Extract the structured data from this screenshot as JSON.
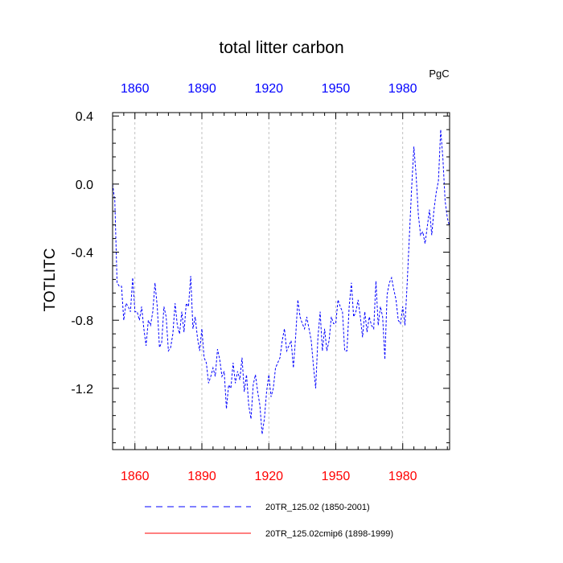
{
  "chart_data": {
    "type": "line",
    "title": "total litter carbon",
    "units": "PgC",
    "ylabel": "TOTLITC",
    "xlabel": "",
    "xlim": [
      1850,
      2001
    ],
    "ylim": [
      -1.56,
      0.42
    ],
    "grid": "vertical dashed at x ticks",
    "x_ticks": [
      1860,
      1890,
      1920,
      1950,
      1980
    ],
    "x_tick_labels": [
      "1860",
      "1890",
      "1920",
      "1950",
      "1980"
    ],
    "y_ticks": [
      0.4,
      0.0,
      -0.4,
      -0.8,
      -1.2
    ],
    "y_tick_labels": [
      "0.4",
      "0.0",
      "-0.4",
      "-0.8",
      "-1.2"
    ],
    "legend": [
      {
        "label": "20TR_125.02 (1850-2001)",
        "color": "#0000ff",
        "style": "dashed"
      },
      {
        "label": "20TR_125.02cmip6 (1898-1999)",
        "color": "#ff0000",
        "style": "solid"
      }
    ],
    "series": [
      {
        "name": "20TR_125.02 (1850-2001)",
        "color": "#0000ff",
        "style": "dashed",
        "x_start": 1850,
        "x_step": 1,
        "values": [
          0.0,
          -0.1,
          -0.58,
          -0.6,
          -0.6,
          -0.8,
          -0.7,
          -0.72,
          -0.75,
          -0.55,
          -0.75,
          -0.75,
          -0.8,
          -0.72,
          -0.85,
          -0.95,
          -0.8,
          -0.83,
          -0.75,
          -0.58,
          -0.72,
          -0.96,
          -0.93,
          -0.72,
          -0.78,
          -0.98,
          -0.96,
          -0.88,
          -0.7,
          -0.83,
          -0.88,
          -0.75,
          -0.87,
          -0.7,
          -0.72,
          -0.54,
          -0.85,
          -0.78,
          -0.9,
          -0.98,
          -0.85,
          -1.02,
          -1.05,
          -1.17,
          -1.13,
          -1.08,
          -1.13,
          -0.97,
          -1.03,
          -1.13,
          -1.1,
          -1.32,
          -1.18,
          -1.2,
          -1.05,
          -1.17,
          -1.1,
          -1.15,
          -1.02,
          -1.22,
          -1.12,
          -1.3,
          -1.38,
          -1.18,
          -1.12,
          -1.22,
          -1.3,
          -1.47,
          -1.38,
          -1.22,
          -1.12,
          -1.25,
          -1.2,
          -1.08,
          -1.05,
          -1.02,
          -0.92,
          -0.85,
          -0.98,
          -0.95,
          -0.92,
          -1.08,
          -0.9,
          -0.68,
          -0.78,
          -0.82,
          -0.85,
          -0.78,
          -0.85,
          -0.92,
          -1.07,
          -1.2,
          -0.9,
          -0.75,
          -0.98,
          -0.85,
          -0.98,
          -0.92,
          -0.78,
          -0.82,
          -0.82,
          -0.68,
          -0.72,
          -0.75,
          -0.98,
          -0.98,
          -0.72,
          -0.58,
          -0.78,
          -0.75,
          -0.68,
          -0.78,
          -0.9,
          -0.75,
          -0.87,
          -0.78,
          -0.83,
          -0.85,
          -0.57,
          -0.83,
          -0.72,
          -0.78,
          -1.03,
          -0.65,
          -0.58,
          -0.55,
          -0.62,
          -0.68,
          -0.8,
          -0.82,
          -0.72,
          -0.83,
          -0.58,
          -0.3,
          -0.02,
          0.22,
          0.05,
          -0.18,
          -0.3,
          -0.28,
          -0.35,
          -0.25,
          -0.15,
          -0.3,
          -0.15,
          -0.05,
          0.02,
          0.32,
          0.15,
          -0.1,
          -0.2,
          -0.25
        ]
      },
      {
        "name": "20TR_125.02cmip6 (1898-1999)",
        "color": "#ff0000",
        "style": "solid",
        "values": []
      }
    ]
  }
}
